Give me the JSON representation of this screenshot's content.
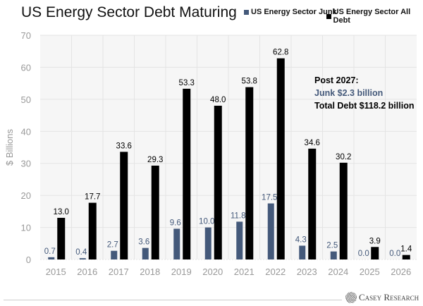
{
  "chart_data": {
    "type": "bar",
    "title": "US Energy Sector Debt Maturing",
    "ylabel": "$ Billions",
    "xlabel": "",
    "ylim": [
      0,
      70
    ],
    "yticks": [
      0,
      10,
      20,
      30,
      40,
      50,
      60,
      70
    ],
    "grid": true,
    "legend_position": "top-right",
    "categories": [
      "2015",
      "2016",
      "2017",
      "2018",
      "2019",
      "2020",
      "2021",
      "2022",
      "2023",
      "2024",
      "2025",
      "2026"
    ],
    "series": [
      {
        "name": "US Energy Sector Junk",
        "color": "#44597a",
        "label_color": "#44597a",
        "values": [
          0.7,
          0.4,
          2.7,
          3.6,
          9.6,
          10.0,
          11.8,
          17.5,
          4.3,
          2.5,
          0.0,
          0.0
        ]
      },
      {
        "name": "US Energy Sector All Debt",
        "color": "#000000",
        "label_color": "#000000",
        "values": [
          13.0,
          17.7,
          33.6,
          29.3,
          53.3,
          48.0,
          53.8,
          62.8,
          34.6,
          30.2,
          3.9,
          1.4
        ]
      }
    ],
    "annotation": {
      "line1": "Post 2027:",
      "line2": "Junk $2.3 billion",
      "line3": "Total Debt $118.2 billion",
      "line2_color": "#44597a"
    }
  },
  "brand": {
    "logo_text": "Casey Research"
  }
}
